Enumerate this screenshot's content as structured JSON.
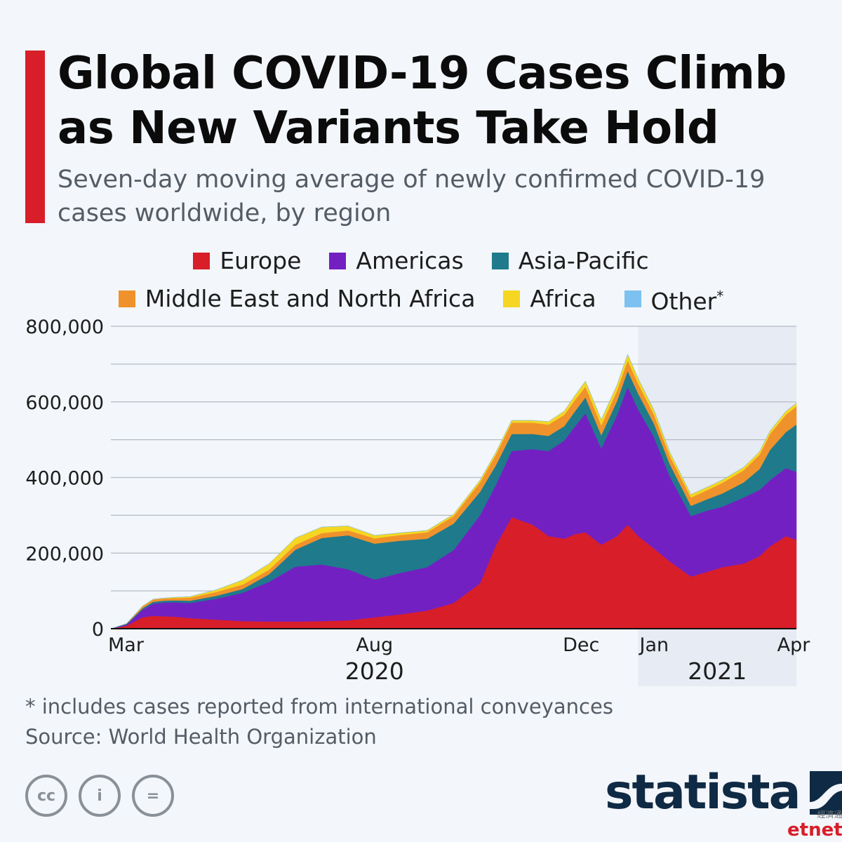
{
  "header": {
    "title_line1": "Global COVID-19 Cases Climb",
    "title_line2": "as New Variants Take Hold",
    "subtitle_line1": "Seven-day moving average of newly confirmed COVID-19",
    "subtitle_line2": "cases worldwide, by region"
  },
  "colors": {
    "accent": "#d81e29",
    "europe": "#d81e29",
    "americas": "#7320c2",
    "asia_pacific": "#1f7a8c",
    "mena": "#f0922b",
    "africa": "#f5d623",
    "other": "#7cc1ef",
    "brand": "#0f2a44"
  },
  "legend": {
    "row1": [
      {
        "label": "Europe",
        "color": "#d81e29"
      },
      {
        "label": "Americas",
        "color": "#7320c2"
      },
      {
        "label": "Asia-Pacific",
        "color": "#1f7a8c"
      }
    ],
    "row2": [
      {
        "label": "Middle East and North Africa",
        "color": "#f0922b"
      },
      {
        "label": "Africa",
        "color": "#f5d623"
      },
      {
        "label": "Other",
        "color": "#7cc1ef",
        "marker": "*"
      }
    ]
  },
  "chart_data": {
    "type": "area",
    "stacked": true,
    "x_unit": "month index (0 = start of Mar 2020)",
    "x": [
      0,
      0.3,
      0.6,
      0.8,
      1,
      1.2,
      1.5,
      2,
      2.5,
      3,
      3.5,
      4,
      4.5,
      5,
      5.5,
      6,
      6.5,
      7,
      7.3,
      7.6,
      8,
      8.3,
      8.6,
      8.8,
      9,
      9.3,
      9.6,
      9.8,
      10,
      10.3,
      10.6,
      11,
      11.3,
      11.6,
      12,
      12.3,
      12.5,
      12.8,
      13
    ],
    "series": [
      {
        "name": "Europe",
        "values": [
          0,
          8,
          30,
          34,
          33,
          32,
          28,
          24,
          20,
          19,
          19,
          20,
          22,
          30,
          38,
          48,
          68,
          120,
          220,
          295,
          275,
          245,
          238,
          250,
          255,
          222,
          245,
          275,
          245,
          212,
          178,
          138,
          150,
          163,
          172,
          192,
          218,
          245,
          235
        ]
      },
      {
        "name": "Americas",
        "values": [
          0,
          3,
          20,
          32,
          36,
          38,
          40,
          55,
          75,
          105,
          145,
          150,
          135,
          100,
          110,
          115,
          140,
          180,
          160,
          175,
          200,
          225,
          260,
          285,
          315,
          255,
          320,
          365,
          335,
          295,
          225,
          160,
          162,
          160,
          175,
          175,
          175,
          180,
          180
        ]
      },
      {
        "name": "Asia-Pacific",
        "values": [
          0,
          2,
          4,
          5,
          5,
          5,
          6,
          8,
          10,
          20,
          45,
          70,
          90,
          95,
          85,
          75,
          70,
          62,
          52,
          45,
          40,
          40,
          38,
          40,
          42,
          35,
          38,
          42,
          42,
          35,
          32,
          27,
          30,
          35,
          40,
          55,
          80,
          95,
          125
        ]
      },
      {
        "name": "Middle East and North Africa",
        "values": [
          0,
          1,
          5,
          6,
          6,
          6,
          8,
          10,
          12,
          12,
          13,
          13,
          13,
          14,
          15,
          17,
          20,
          25,
          28,
          30,
          30,
          30,
          30,
          30,
          28,
          26,
          27,
          28,
          26,
          24,
          22,
          22,
          24,
          28,
          32,
          38,
          42,
          46,
          48
        ]
      },
      {
        "name": "Africa",
        "values": [
          0,
          0,
          1,
          1,
          1,
          2,
          3,
          6,
          12,
          16,
          18,
          16,
          12,
          8,
          6,
          5,
          5,
          6,
          6,
          6,
          6,
          8,
          10,
          12,
          15,
          15,
          15,
          16,
          14,
          12,
          10,
          8,
          8,
          8,
          8,
          8,
          8,
          9,
          9
        ]
      },
      {
        "name": "Other",
        "values": [
          0,
          0,
          0,
          0,
          0,
          0,
          0,
          0,
          0,
          0,
          0,
          0,
          0,
          0,
          0,
          0,
          0,
          0,
          0,
          0,
          0,
          0,
          0,
          0,
          0,
          0,
          0,
          0,
          0,
          0,
          0,
          0,
          0,
          0,
          0,
          0,
          0,
          0,
          0
        ]
      }
    ],
    "value_unit": "thousand",
    "y_ticks": [
      "800,000",
      "600,000",
      "400,000",
      "200,000",
      "0"
    ],
    "ylim": [
      0,
      800000
    ],
    "x_ticks": [
      {
        "label": "Mar",
        "month_index": 0
      },
      {
        "label": "Aug",
        "month_index": 5
      },
      {
        "label": "Dec",
        "month_index": 9
      },
      {
        "label": "Jan",
        "month_index": 10
      },
      {
        "label": "Apr",
        "month_index": 13
      }
    ],
    "years": [
      {
        "label": "2020",
        "month_index": 5
      },
      {
        "label": "2021",
        "month_index": 11.5
      }
    ],
    "highlight_from_month_index": 10,
    "grid": true,
    "legend_position": "top"
  },
  "footer": {
    "footnote": "* includes cases reported from international conveyances",
    "source": "Source: World Health Organization",
    "cc_labels": [
      "cc",
      "i",
      "="
    ],
    "brand": "statista",
    "watermark_cn": "經濟通",
    "watermark_en": "etnet"
  }
}
